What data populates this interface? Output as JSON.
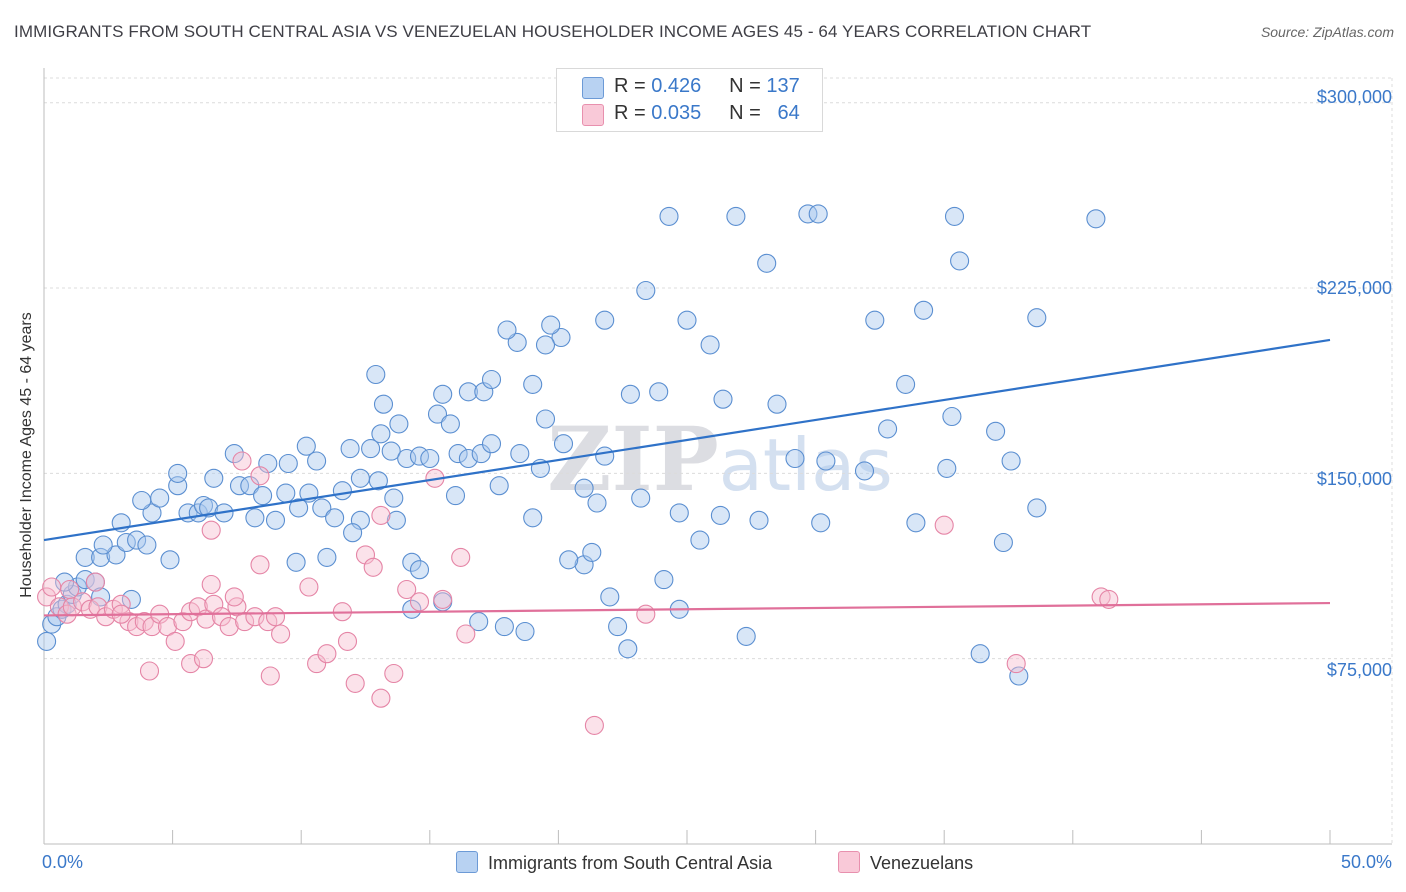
{
  "chart_data": {
    "type": "scatter",
    "title": "IMMIGRANTS FROM SOUTH CENTRAL ASIA VS VENEZUELAN HOUSEHOLDER INCOME AGES 45 - 64 YEARS CORRELATION CHART",
    "source": "Source: ZipAtlas.com",
    "xlabel": "",
    "ylabel": "Householder Income Ages 45 - 64 years",
    "xlim": [
      0,
      50
    ],
    "ylim": [
      0,
      310000
    ],
    "x_tick_labels": [
      "0.0%",
      "50.0%"
    ],
    "y_ticks": [
      75000,
      150000,
      225000,
      300000
    ],
    "y_tick_labels": [
      "$75,000",
      "$150,000",
      "$225,000",
      "$300,000"
    ],
    "grid": true,
    "watermark": "ZIPatlas",
    "legend_top": [
      {
        "r_label": "R =",
        "r_value": "0.426",
        "n_label": "N =",
        "n_value": "137"
      },
      {
        "r_label": "R =",
        "r_value": "0.035",
        "n_label": "N =",
        "n_value": "64"
      }
    ],
    "series": [
      {
        "name": "Immigrants from South Central Asia",
        "color": "#a8c8ee",
        "stroke": "#5b8fd1",
        "trend_color": "#2f72c8",
        "trend": {
          "x": [
            0,
            50
          ],
          "y": [
            123000,
            204000
          ]
        },
        "points": [
          [
            0.1,
            82000
          ],
          [
            0.3,
            89000
          ],
          [
            0.5,
            92000
          ],
          [
            0.7,
            95000
          ],
          [
            0.9,
            97000
          ],
          [
            1.1,
            101000
          ],
          [
            1.3,
            104000
          ],
          [
            0.8,
            106000
          ],
          [
            1.6,
            107000
          ],
          [
            2.0,
            106000
          ],
          [
            2.2,
            100000
          ],
          [
            3.4,
            99000
          ],
          [
            1.6,
            116000
          ],
          [
            2.2,
            116000
          ],
          [
            2.8,
            117000
          ],
          [
            2.3,
            121000
          ],
          [
            3.2,
            122000
          ],
          [
            3.6,
            123000
          ],
          [
            4.0,
            121000
          ],
          [
            4.9,
            115000
          ],
          [
            3.0,
            130000
          ],
          [
            4.2,
            134000
          ],
          [
            5.6,
            134000
          ],
          [
            6.0,
            134000
          ],
          [
            6.2,
            137000
          ],
          [
            6.4,
            136000
          ],
          [
            7.0,
            134000
          ],
          [
            8.2,
            132000
          ],
          [
            9.0,
            131000
          ],
          [
            9.9,
            136000
          ],
          [
            10.8,
            136000
          ],
          [
            11.3,
            132000
          ],
          [
            12.3,
            131000
          ],
          [
            13.7,
            131000
          ],
          [
            14.3,
            114000
          ],
          [
            14.6,
            111000
          ],
          [
            9.8,
            114000
          ],
          [
            11.0,
            116000
          ],
          [
            3.8,
            139000
          ],
          [
            4.5,
            140000
          ],
          [
            5.2,
            145000
          ],
          [
            6.6,
            148000
          ],
          [
            7.6,
            145000
          ],
          [
            8.0,
            145000
          ],
          [
            8.5,
            141000
          ],
          [
            9.4,
            142000
          ],
          [
            10.3,
            142000
          ],
          [
            11.6,
            143000
          ],
          [
            12.3,
            148000
          ],
          [
            13.0,
            147000
          ],
          [
            13.6,
            140000
          ],
          [
            5.2,
            150000
          ],
          [
            7.4,
            158000
          ],
          [
            8.7,
            154000
          ],
          [
            9.5,
            154000
          ],
          [
            10.2,
            161000
          ],
          [
            10.6,
            155000
          ],
          [
            11.9,
            160000
          ],
          [
            12.7,
            160000
          ],
          [
            13.5,
            159000
          ],
          [
            14.1,
            156000
          ],
          [
            14.6,
            157000
          ],
          [
            15.0,
            156000
          ],
          [
            16.1,
            158000
          ],
          [
            16.0,
            141000
          ],
          [
            16.5,
            156000
          ],
          [
            17.0,
            158000
          ],
          [
            17.4,
            162000
          ],
          [
            17.7,
            145000
          ],
          [
            18.5,
            158000
          ],
          [
            19.3,
            152000
          ],
          [
            19.0,
            132000
          ],
          [
            20.2,
            162000
          ],
          [
            21.0,
            144000
          ],
          [
            21.8,
            157000
          ],
          [
            13.1,
            166000
          ],
          [
            13.8,
            170000
          ],
          [
            15.3,
            174000
          ],
          [
            15.8,
            170000
          ],
          [
            16.5,
            183000
          ],
          [
            17.1,
            183000
          ],
          [
            17.4,
            188000
          ],
          [
            13.2,
            178000
          ],
          [
            12.9,
            190000
          ],
          [
            15.5,
            182000
          ],
          [
            19.0,
            186000
          ],
          [
            19.5,
            172000
          ],
          [
            20.1,
            205000
          ],
          [
            19.5,
            202000
          ],
          [
            18.4,
            203000
          ],
          [
            18.0,
            208000
          ],
          [
            19.7,
            210000
          ],
          [
            21.8,
            212000
          ],
          [
            22.8,
            182000
          ],
          [
            23.9,
            183000
          ],
          [
            23.4,
            224000
          ],
          [
            25.0,
            212000
          ],
          [
            26.4,
            180000
          ],
          [
            25.9,
            202000
          ],
          [
            28.1,
            235000
          ],
          [
            26.9,
            254000
          ],
          [
            24.3,
            254000
          ],
          [
            28.5,
            178000
          ],
          [
            29.2,
            156000
          ],
          [
            29.7,
            255000
          ],
          [
            30.1,
            255000
          ],
          [
            30.4,
            155000
          ],
          [
            31.9,
            151000
          ],
          [
            30.2,
            130000
          ],
          [
            32.3,
            212000
          ],
          [
            32.8,
            168000
          ],
          [
            33.5,
            186000
          ],
          [
            34.2,
            216000
          ],
          [
            33.9,
            130000
          ],
          [
            35.4,
            254000
          ],
          [
            35.6,
            236000
          ],
          [
            35.1,
            152000
          ],
          [
            35.3,
            173000
          ],
          [
            37.0,
            167000
          ],
          [
            37.6,
            155000
          ],
          [
            37.3,
            122000
          ],
          [
            37.9,
            68000
          ],
          [
            38.6,
            213000
          ],
          [
            38.6,
            136000
          ],
          [
            40.9,
            253000
          ],
          [
            22.0,
            100000
          ],
          [
            22.3,
            88000
          ],
          [
            21.0,
            113000
          ],
          [
            21.3,
            118000
          ],
          [
            22.7,
            79000
          ],
          [
            24.1,
            107000
          ],
          [
            24.7,
            95000
          ],
          [
            25.5,
            123000
          ],
          [
            27.3,
            84000
          ],
          [
            26.3,
            133000
          ],
          [
            16.9,
            90000
          ],
          [
            14.3,
            95000
          ],
          [
            18.7,
            86000
          ],
          [
            20.4,
            115000
          ],
          [
            36.4,
            77000
          ],
          [
            23.2,
            140000
          ],
          [
            24.7,
            134000
          ],
          [
            27.8,
            131000
          ],
          [
            17.9,
            88000
          ],
          [
            15.5,
            98000
          ],
          [
            21.5,
            138000
          ],
          [
            12.0,
            126000
          ]
        ]
      },
      {
        "name": "Venezuelans",
        "color": "#f7bfd1",
        "stroke": "#e585a6",
        "trend_color": "#e0709a",
        "trend": {
          "x": [
            0,
            50
          ],
          "y": [
            92500,
            97500
          ]
        },
        "points": [
          [
            0.1,
            100000
          ],
          [
            0.3,
            104000
          ],
          [
            0.6,
            96000
          ],
          [
            0.9,
            93000
          ],
          [
            1.1,
            96000
          ],
          [
            1.5,
            98000
          ],
          [
            1.8,
            95000
          ],
          [
            2.1,
            96000
          ],
          [
            2.4,
            92000
          ],
          [
            2.7,
            95000
          ],
          [
            3.0,
            97000
          ],
          [
            3.3,
            90000
          ],
          [
            3.6,
            88000
          ],
          [
            3.9,
            90000
          ],
          [
            4.2,
            88000
          ],
          [
            4.5,
            93000
          ],
          [
            4.8,
            88000
          ],
          [
            5.1,
            82000
          ],
          [
            5.4,
            90000
          ],
          [
            5.7,
            94000
          ],
          [
            6.0,
            96000
          ],
          [
            6.3,
            91000
          ],
          [
            6.6,
            97000
          ],
          [
            6.9,
            92000
          ],
          [
            7.2,
            88000
          ],
          [
            7.5,
            96000
          ],
          [
            7.8,
            90000
          ],
          [
            8.2,
            92000
          ],
          [
            8.7,
            90000
          ],
          [
            9.0,
            92000
          ],
          [
            1.0,
            103000
          ],
          [
            2.0,
            106000
          ],
          [
            3.0,
            93000
          ],
          [
            4.1,
            70000
          ],
          [
            5.7,
            73000
          ],
          [
            6.2,
            75000
          ],
          [
            6.5,
            105000
          ],
          [
            7.4,
            100000
          ],
          [
            8.4,
            113000
          ],
          [
            8.8,
            68000
          ],
          [
            9.2,
            85000
          ],
          [
            10.3,
            104000
          ],
          [
            10.6,
            73000
          ],
          [
            11.0,
            77000
          ],
          [
            11.6,
            94000
          ],
          [
            11.8,
            82000
          ],
          [
            12.1,
            65000
          ],
          [
            12.5,
            117000
          ],
          [
            12.8,
            112000
          ],
          [
            13.1,
            59000
          ],
          [
            13.6,
            69000
          ],
          [
            14.1,
            103000
          ],
          [
            14.6,
            98000
          ],
          [
            15.2,
            148000
          ],
          [
            15.5,
            99000
          ],
          [
            16.2,
            116000
          ],
          [
            16.4,
            85000
          ],
          [
            6.5,
            127000
          ],
          [
            7.7,
            155000
          ],
          [
            8.4,
            149000
          ],
          [
            23.4,
            93000
          ],
          [
            35.0,
            129000
          ],
          [
            37.8,
            73000
          ],
          [
            41.1,
            100000
          ],
          [
            41.4,
            99000
          ],
          [
            21.4,
            48000
          ],
          [
            13.1,
            133000
          ]
        ]
      }
    ]
  }
}
